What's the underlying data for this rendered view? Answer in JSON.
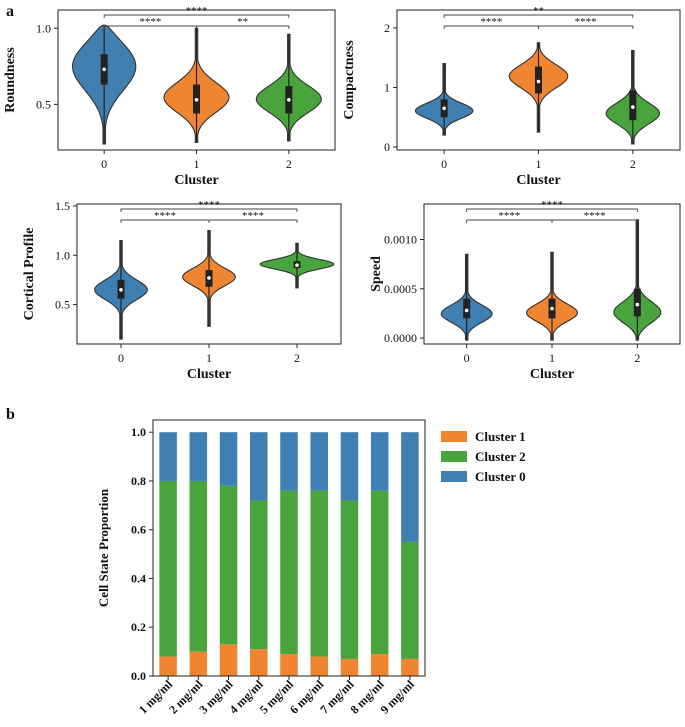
{
  "panels": {
    "a_label": "a",
    "b_label": "b"
  },
  "colors": {
    "cluster0": "#3f7fb1",
    "cluster1": "#ef8530",
    "cluster2": "#4aa43d"
  },
  "chart_data": [
    {
      "type": "violin",
      "panel": "a",
      "id": "roundness",
      "xlabel": "Cluster",
      "ylabel": "Roundness",
      "categories": [
        "0",
        "1",
        "2"
      ],
      "ylim": [
        0.2,
        1.12
      ],
      "yticks": [
        0.5,
        1.0
      ],
      "ytick_labels": [
        "0.5",
        "1.0"
      ],
      "violins": [
        {
          "cluster": "0",
          "min": 0.24,
          "max": 1.02,
          "q1": 0.63,
          "median": 0.73,
          "q3": 0.83,
          "color": "#3f7fb1",
          "mode": 0.77,
          "spread": 0.17,
          "width": 0.36
        },
        {
          "cluster": "1",
          "min": 0.25,
          "max": 1.0,
          "q1": 0.44,
          "median": 0.53,
          "q3": 0.63,
          "color": "#ef8530",
          "mode": 0.54,
          "spread": 0.1,
          "width": 0.36
        },
        {
          "cluster": "2",
          "min": 0.26,
          "max": 0.96,
          "q1": 0.44,
          "median": 0.53,
          "q3": 0.62,
          "color": "#4aa43d",
          "mode": 0.53,
          "spread": 0.09,
          "width": 0.36
        }
      ],
      "annotations": [
        {
          "from": 0,
          "to": 1,
          "label": "****",
          "level": 0
        },
        {
          "from": 1,
          "to": 2,
          "label": "**",
          "level": 0
        },
        {
          "from": 0,
          "to": 2,
          "label": "****",
          "level": 1
        }
      ]
    },
    {
      "type": "violin",
      "panel": "a",
      "id": "compactness",
      "xlabel": "Cluster",
      "ylabel": "Compactness",
      "categories": [
        "0",
        "1",
        "2"
      ],
      "ylim": [
        -0.05,
        2.3
      ],
      "yticks": [
        0,
        1,
        2
      ],
      "ytick_labels": [
        "0",
        "1",
        "2"
      ],
      "violins": [
        {
          "cluster": "0",
          "min": 0.2,
          "max": 1.4,
          "q1": 0.5,
          "median": 0.65,
          "q3": 0.8,
          "color": "#3f7fb1",
          "mode": 0.6,
          "spread": 0.13,
          "width": 0.32
        },
        {
          "cluster": "1",
          "min": 0.25,
          "max": 1.75,
          "q1": 0.9,
          "median": 1.1,
          "q3": 1.35,
          "color": "#ef8530",
          "mode": 1.2,
          "spread": 0.2,
          "width": 0.32
        },
        {
          "cluster": "2",
          "min": 0.05,
          "max": 1.62,
          "q1": 0.45,
          "median": 0.67,
          "q3": 0.95,
          "color": "#4aa43d",
          "mode": 0.55,
          "spread": 0.18,
          "width": 0.3
        }
      ],
      "annotations": [
        {
          "from": 0,
          "to": 1,
          "label": "****",
          "level": 0
        },
        {
          "from": 1,
          "to": 2,
          "label": "****",
          "level": 0
        },
        {
          "from": 0,
          "to": 2,
          "label": "**",
          "level": 1
        }
      ]
    },
    {
      "type": "violin",
      "panel": "a",
      "id": "cortical_profile",
      "xlabel": "Cluster",
      "ylabel": "Cortical Profile",
      "categories": [
        "0",
        "1",
        "2"
      ],
      "ylim": [
        0.1,
        1.52
      ],
      "yticks": [
        0.5,
        1.0,
        1.5
      ],
      "ytick_labels": [
        "0.5",
        "1.0",
        "1.5"
      ],
      "violins": [
        {
          "cluster": "0",
          "min": 0.15,
          "max": 1.15,
          "q1": 0.56,
          "median": 0.65,
          "q3": 0.75,
          "color": "#3f7fb1",
          "mode": 0.65,
          "spread": 0.1,
          "width": 0.3
        },
        {
          "cluster": "1",
          "min": 0.28,
          "max": 1.25,
          "q1": 0.68,
          "median": 0.77,
          "q3": 0.85,
          "color": "#ef8530",
          "mode": 0.78,
          "spread": 0.09,
          "width": 0.3
        },
        {
          "cluster": "2",
          "min": 0.67,
          "max": 1.12,
          "q1": 0.87,
          "median": 0.9,
          "q3": 0.94,
          "color": "#4aa43d",
          "mode": 0.91,
          "spread": 0.05,
          "width": 0.42
        }
      ],
      "annotations": [
        {
          "from": 0,
          "to": 1,
          "label": "****",
          "level": 0
        },
        {
          "from": 1,
          "to": 2,
          "label": "****",
          "level": 0
        },
        {
          "from": 0,
          "to": 2,
          "label": "****",
          "level": 1
        }
      ]
    },
    {
      "type": "violin",
      "panel": "a",
      "id": "speed",
      "xlabel": "Cluster",
      "ylabel": "Speed",
      "categories": [
        "0",
        "1",
        "2"
      ],
      "ylim": [
        -6e-05,
        0.00136
      ],
      "yticks": [
        0.0,
        0.0005,
        0.001
      ],
      "ytick_labels": [
        "0.0000",
        "0.0005",
        "0.0010"
      ],
      "violins": [
        {
          "cluster": "0",
          "min": -2e-05,
          "max": 0.00085,
          "q1": 0.0002,
          "median": 0.00028,
          "q3": 0.0004,
          "color": "#3f7fb1",
          "mode": 0.00024,
          "spread": 9e-05,
          "width": 0.32
        },
        {
          "cluster": "1",
          "min": -2e-05,
          "max": 0.00087,
          "q1": 0.0002,
          "median": 0.0003,
          "q3": 0.0004,
          "color": "#ef8530",
          "mode": 0.00025,
          "spread": 9e-05,
          "width": 0.32
        },
        {
          "cluster": "2",
          "min": -2e-05,
          "max": 0.0012,
          "q1": 0.00022,
          "median": 0.00034,
          "q3": 0.0005,
          "color": "#4aa43d",
          "mode": 0.00025,
          "spread": 0.00011,
          "width": 0.32
        }
      ],
      "annotations": [
        {
          "from": 0,
          "to": 1,
          "label": "****",
          "level": 0
        },
        {
          "from": 1,
          "to": 2,
          "label": "****",
          "level": 0
        },
        {
          "from": 0,
          "to": 2,
          "label": "****",
          "level": 1
        }
      ]
    },
    {
      "type": "bar",
      "stacked": true,
      "panel": "b",
      "id": "cell_state_proportion",
      "xlabel": "",
      "ylabel": "Cell State Proportion",
      "categories": [
        "1 mg/ml",
        "2 mg/ml",
        "3 mg/ml",
        "4 mg/ml",
        "5 mg/ml",
        "6 mg/ml",
        "7 mg/ml",
        "8 mg/ml",
        "9 mg/ml"
      ],
      "ylim": [
        0,
        1.05
      ],
      "yticks": [
        0,
        0.2,
        0.4,
        0.6,
        0.8,
        1.0
      ],
      "ytick_labels": [
        "0.0",
        "0.2",
        "0.4",
        "0.6",
        "0.8",
        "1.0"
      ],
      "series": [
        {
          "name": "Cluster 1",
          "color": "#ef8530",
          "values": [
            0.08,
            0.1,
            0.13,
            0.11,
            0.09,
            0.08,
            0.07,
            0.09,
            0.07
          ]
        },
        {
          "name": "Cluster 2",
          "color": "#4aa43d",
          "values": [
            0.72,
            0.7,
            0.65,
            0.61,
            0.67,
            0.68,
            0.65,
            0.67,
            0.48
          ]
        },
        {
          "name": "Cluster 0",
          "color": "#3f7fb1",
          "values": [
            0.2,
            0.2,
            0.22,
            0.28,
            0.24,
            0.24,
            0.28,
            0.24,
            0.45
          ]
        }
      ],
      "legend": {
        "position": "right",
        "entries": [
          "Cluster 1",
          "Cluster 2",
          "Cluster 0"
        ]
      }
    }
  ]
}
